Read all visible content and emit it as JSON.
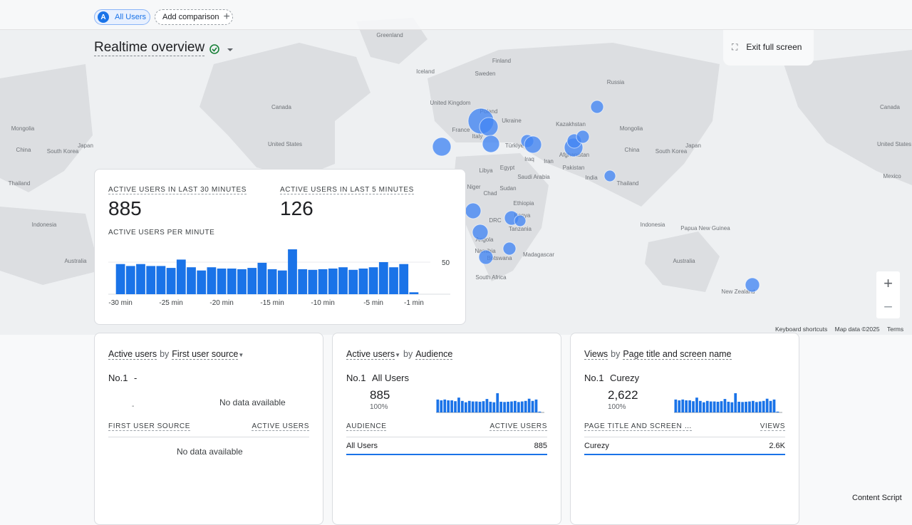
{
  "header": {
    "avatar": "A",
    "segment": "All Users",
    "add_comparison": "Add comparison",
    "title": "Realtime overview",
    "exit": "Exit full screen"
  },
  "map": {
    "labels": [
      "Greenland",
      "Iceland",
      "Finland",
      "Sweden",
      "Russia",
      "Canada",
      "Canada",
      "United Kingdom",
      "Poland",
      "Ukraine",
      "France",
      "Italy",
      "Kazakhstan",
      "Mongolia",
      "Mongolia",
      "China",
      "China",
      "South Korea",
      "South Korea",
      "Japan",
      "Japan",
      "United States",
      "United States",
      "Türkiye",
      "Iraq",
      "Iran",
      "Afghanistan",
      "Pakistan",
      "India",
      "Thailand",
      "Thailand",
      "Libya",
      "Egypt",
      "Saudi Arabia",
      "Mexico",
      "Niger",
      "Chad",
      "Sudan",
      "Ethiopia",
      "Kenya",
      "DRC",
      "Tanzania",
      "Angola",
      "Namibia",
      "Botswana",
      "Madagascar",
      "South Africa",
      "Indonesia",
      "Indonesia",
      "Papua New Guinea",
      "Australia",
      "Australia",
      "New Zealand"
    ],
    "footer": [
      "Keyboard shortcuts",
      "Map data ©2025",
      "Terms"
    ],
    "zoom_in": "+",
    "zoom_out": "−"
  },
  "realtime": {
    "label_30": "ACTIVE USERS IN LAST 30 MINUTES",
    "value_30": 885,
    "label_5": "ACTIVE USERS IN LAST 5 MINUTES",
    "value_5": 126,
    "per_minute": "ACTIVE USERS PER MINUTE"
  },
  "chart_data": {
    "type": "bar",
    "categories": [
      "-30 min",
      null,
      null,
      null,
      null,
      "-25 min",
      null,
      null,
      null,
      null,
      "-20 min",
      null,
      null,
      null,
      null,
      "-15 min",
      null,
      null,
      null,
      null,
      "-10 min",
      null,
      null,
      null,
      null,
      "-5 min",
      null,
      null,
      null,
      "-1 min"
    ],
    "values": [
      47,
      44,
      47,
      44,
      44,
      41,
      54,
      42,
      37,
      42,
      40,
      40,
      39,
      41,
      49,
      39,
      37,
      70,
      39,
      38,
      39,
      40,
      42,
      38,
      40,
      42,
      50,
      42,
      47,
      3
    ],
    "color": "#1a73e8",
    "ylim": [
      0,
      80
    ],
    "yticks": [
      50
    ],
    "grid": true
  },
  "cards": [
    {
      "metric": "Active users",
      "by": "by",
      "dimension": "First user source",
      "no1": "No.1",
      "top": "-",
      "empty": "No data available",
      "sub": "-",
      "col1": "FIRST USER SOURCE",
      "col2": "ACTIVE USERS",
      "table_empty": "No data available"
    },
    {
      "metric": "Active users",
      "by": "by",
      "dimension": "Audience",
      "no1": "No.1",
      "top": "All Users",
      "total": "885",
      "share": "100%",
      "sparkline": [
        47,
        44,
        47,
        44,
        44,
        41,
        54,
        42,
        37,
        42,
        40,
        40,
        39,
        41,
        49,
        39,
        37,
        70,
        39,
        38,
        39,
        40,
        42,
        38,
        40,
        42,
        50,
        42,
        47,
        3
      ],
      "col1": "AUDIENCE",
      "col2": "ACTIVE USERS",
      "row": [
        "All Users",
        "885"
      ]
    },
    {
      "metric": "Views",
      "by": "by",
      "dimension": "Page title and screen name",
      "no1": "No.1",
      "top": "Curezy",
      "total": "2,622",
      "share": "100%",
      "sparkline": [
        47,
        44,
        47,
        44,
        44,
        41,
        54,
        42,
        37,
        42,
        40,
        40,
        39,
        41,
        49,
        39,
        37,
        70,
        39,
        38,
        39,
        40,
        42,
        38,
        40,
        42,
        50,
        42,
        47,
        3
      ],
      "col1": "PAGE TITLE AND SCREEN …",
      "col2": "VIEWS",
      "row": [
        "Curezy",
        "2.6K"
      ]
    }
  ],
  "footer": "Content Script"
}
